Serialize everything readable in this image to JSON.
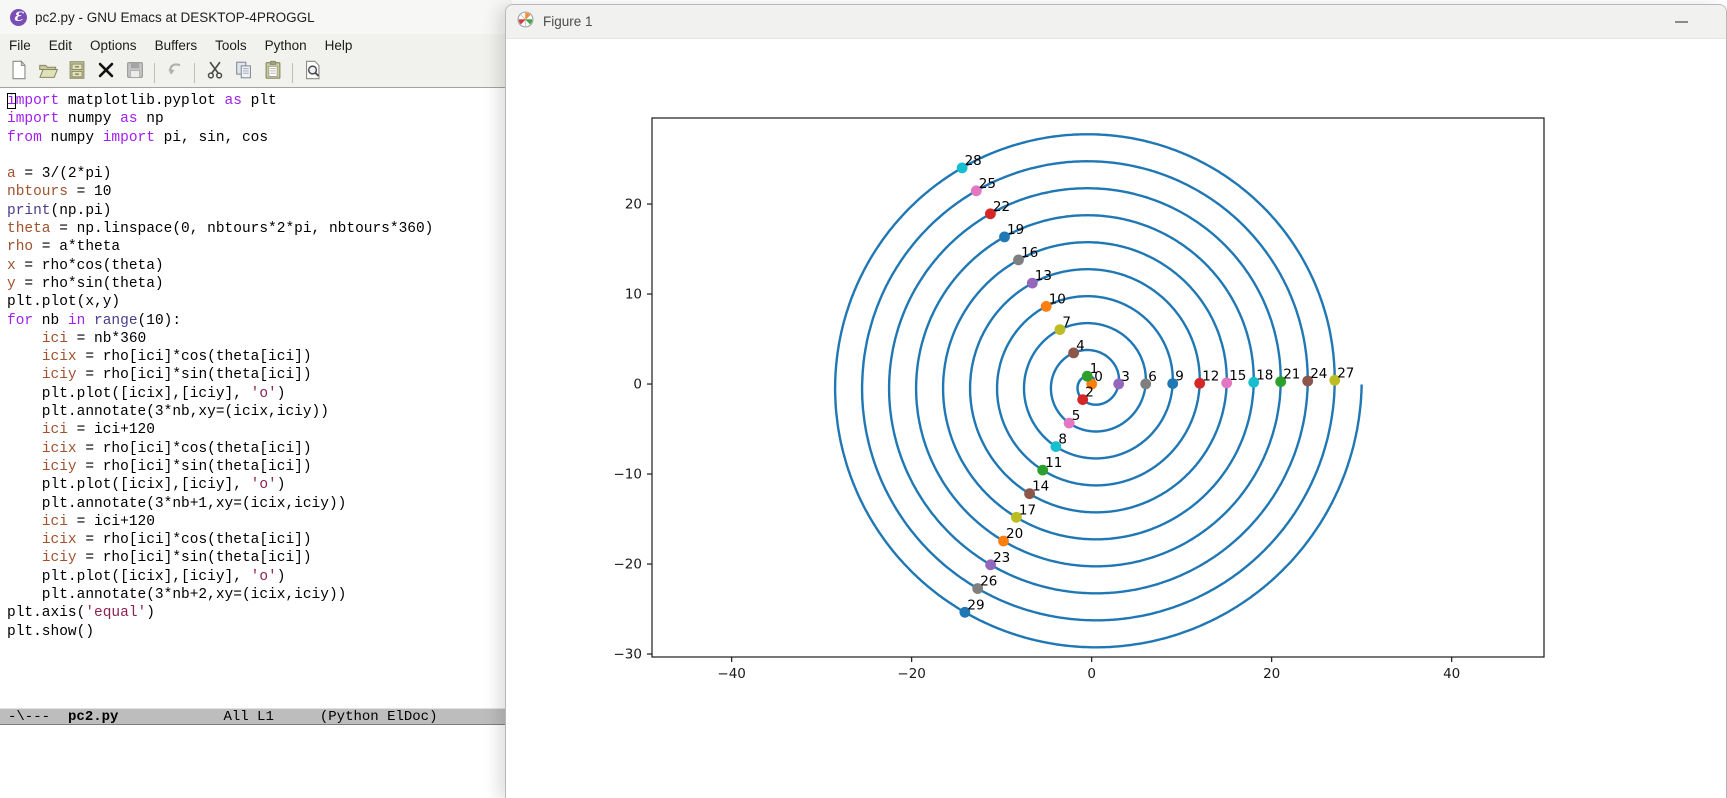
{
  "emacs": {
    "title": "pc2.py - GNU Emacs at DESKTOP-4PROGGL",
    "app_icon_glyph": "Ɛ",
    "menu": [
      "File",
      "Edit",
      "Options",
      "Buffers",
      "Tools",
      "Python",
      "Help"
    ],
    "toolbar": [
      {
        "name": "new-file"
      },
      {
        "name": "open-file"
      },
      {
        "name": "directory"
      },
      {
        "name": "kill-buffer"
      },
      {
        "name": "save",
        "disabled": true
      },
      "|",
      {
        "name": "undo",
        "disabled": true
      },
      "|",
      {
        "name": "cut"
      },
      {
        "name": "copy"
      },
      {
        "name": "paste"
      },
      "|",
      {
        "name": "search"
      }
    ],
    "code_lines": [
      [
        [
          "import",
          "k"
        ],
        [
          " matplotlib.pyplot ",
          ""
        ],
        [
          "as",
          "k"
        ],
        [
          " plt",
          ""
        ]
      ],
      [
        [
          "import",
          "k"
        ],
        [
          " numpy ",
          ""
        ],
        [
          "as",
          "k"
        ],
        [
          " np",
          ""
        ]
      ],
      [
        [
          "from",
          "k"
        ],
        [
          " numpy ",
          ""
        ],
        [
          "import",
          "k"
        ],
        [
          " pi, sin, cos",
          ""
        ]
      ],
      [],
      [
        [
          "a",
          "v"
        ],
        [
          " = 3/(2*pi)",
          ""
        ]
      ],
      [
        [
          "nbtours",
          "v"
        ],
        [
          " = 10",
          ""
        ]
      ],
      [
        [
          "print",
          "b"
        ],
        [
          "(np.pi)",
          ""
        ]
      ],
      [
        [
          "theta",
          "v"
        ],
        [
          " = np.linspace(0, nbtours*2*pi, nbtours*360)",
          ""
        ]
      ],
      [
        [
          "rho",
          "v"
        ],
        [
          " = a*theta",
          ""
        ]
      ],
      [
        [
          "x",
          "v"
        ],
        [
          " = rho*cos(theta)",
          ""
        ]
      ],
      [
        [
          "y",
          "v"
        ],
        [
          " = rho*sin(theta)",
          ""
        ]
      ],
      [
        [
          "plt.plot(x,y)",
          ""
        ]
      ],
      [
        [
          "for",
          "k"
        ],
        [
          " nb ",
          ""
        ],
        [
          "in",
          "k"
        ],
        [
          " ",
          ""
        ],
        [
          "range",
          "b"
        ],
        [
          "(10):",
          ""
        ]
      ],
      [
        [
          "    ",
          ""
        ],
        [
          "ici",
          "v"
        ],
        [
          " = nb*360",
          ""
        ]
      ],
      [
        [
          "    ",
          ""
        ],
        [
          "icix",
          "v"
        ],
        [
          " = rho[ici]*cos(theta[ici])",
          ""
        ]
      ],
      [
        [
          "    ",
          ""
        ],
        [
          "iciy",
          "v"
        ],
        [
          " = rho[ici]*sin(theta[ici])",
          ""
        ]
      ],
      [
        [
          "    plt.plot([icix],[iciy], ",
          ""
        ],
        [
          "'o'",
          "s"
        ],
        [
          ")",
          ""
        ]
      ],
      [
        [
          "    plt.annotate(3*nb,xy=(icix,iciy))",
          ""
        ]
      ],
      [
        [
          "    ",
          ""
        ],
        [
          "ici",
          "v"
        ],
        [
          " = ici+120",
          ""
        ]
      ],
      [
        [
          "    ",
          ""
        ],
        [
          "icix",
          "v"
        ],
        [
          " = rho[ici]*cos(theta[ici])",
          ""
        ]
      ],
      [
        [
          "    ",
          ""
        ],
        [
          "iciy",
          "v"
        ],
        [
          " = rho[ici]*sin(theta[ici])",
          ""
        ]
      ],
      [
        [
          "    plt.plot([icix],[iciy], ",
          ""
        ],
        [
          "'o'",
          "s"
        ],
        [
          ")",
          ""
        ]
      ],
      [
        [
          "    plt.annotate(3*nb+1,xy=(icix,iciy))",
          ""
        ]
      ],
      [
        [
          "    ",
          ""
        ],
        [
          "ici",
          "v"
        ],
        [
          " = ici+120",
          ""
        ]
      ],
      [
        [
          "    ",
          ""
        ],
        [
          "icix",
          "v"
        ],
        [
          " = rho[ici]*cos(theta[ici])",
          ""
        ]
      ],
      [
        [
          "    ",
          ""
        ],
        [
          "iciy",
          "v"
        ],
        [
          " = rho[ici]*sin(theta[ici])",
          ""
        ]
      ],
      [
        [
          "    plt.plot([icix],[iciy], ",
          ""
        ],
        [
          "'o'",
          "s"
        ],
        [
          ")",
          ""
        ]
      ],
      [
        [
          "    plt.annotate(3*nb+2,xy=(icix,iciy))",
          ""
        ]
      ],
      [
        [
          "plt.axis(",
          ""
        ],
        [
          "'equal'",
          "s"
        ],
        [
          ")",
          ""
        ]
      ],
      [
        [
          "plt.show()",
          ""
        ]
      ]
    ],
    "modeline": {
      "prefix": "-\\---",
      "buffer": "pc2.py",
      "position": "All L1",
      "modes": "(Python ElDoc)"
    }
  },
  "figure": {
    "title": "Figure 1",
    "minimize_icon": "minimize-icon"
  },
  "chart_data": {
    "type": "line+scatter",
    "title": "",
    "xlabel": "",
    "ylabel": "",
    "xlim": [
      -48.85,
      50.26
    ],
    "ylim": [
      -30.33,
      29.56
    ],
    "xticks": [
      -40,
      -20,
      0,
      20,
      40
    ],
    "yticks": [
      -30,
      -20,
      -10,
      0,
      10,
      20
    ],
    "grid": false,
    "legend": false,
    "spiral": {
      "equation": "rho = 3*theta/(2*pi)",
      "a": 0.4774648,
      "turns": 10,
      "r_max": 30,
      "color": "#1f77b4"
    },
    "points": [
      {
        "label": "0",
        "x": 0.0,
        "y": 0.0,
        "color": "#ff7f0e"
      },
      {
        "label": "1",
        "x": -0.5,
        "y": 0.87,
        "color": "#2ca02c"
      },
      {
        "label": "2",
        "x": -1.0,
        "y": -1.73,
        "color": "#d62728"
      },
      {
        "label": "3",
        "x": 3.0,
        "y": 0.01,
        "color": "#9467bd"
      },
      {
        "label": "4",
        "x": -2.01,
        "y": 3.46,
        "color": "#8c564b"
      },
      {
        "label": "5",
        "x": -2.49,
        "y": -4.34,
        "color": "#e377c2"
      },
      {
        "label": "6",
        "x": 6.0,
        "y": 0.02,
        "color": "#7f7f7f"
      },
      {
        "label": "7",
        "x": -3.53,
        "y": 6.05,
        "color": "#bcbd22"
      },
      {
        "label": "8",
        "x": -3.97,
        "y": -6.95,
        "color": "#17becf"
      },
      {
        "label": "9",
        "x": 9.0,
        "y": 0.05,
        "color": "#1f77b4"
      },
      {
        "label": "10",
        "x": -5.05,
        "y": 8.63,
        "color": "#ff7f0e"
      },
      {
        "label": "11",
        "x": -5.44,
        "y": -9.56,
        "color": "#2ca02c"
      },
      {
        "label": "12",
        "x": 12.0,
        "y": 0.08,
        "color": "#d62728"
      },
      {
        "label": "13",
        "x": -6.59,
        "y": 11.21,
        "color": "#9467bd"
      },
      {
        "label": "14",
        "x": -6.9,
        "y": -12.18,
        "color": "#8c564b"
      },
      {
        "label": "15",
        "x": 15.0,
        "y": 0.13,
        "color": "#e377c2"
      },
      {
        "label": "16",
        "x": -8.13,
        "y": 13.79,
        "color": "#7f7f7f"
      },
      {
        "label": "17",
        "x": -8.36,
        "y": -14.81,
        "color": "#bcbd22"
      },
      {
        "label": "18",
        "x": 18.0,
        "y": 0.19,
        "color": "#17becf"
      },
      {
        "label": "19",
        "x": -9.68,
        "y": 16.35,
        "color": "#1f77b4"
      },
      {
        "label": "20",
        "x": -9.8,
        "y": -17.44,
        "color": "#ff7f0e"
      },
      {
        "label": "21",
        "x": 21.0,
        "y": 0.26,
        "color": "#2ca02c"
      },
      {
        "label": "22",
        "x": -11.25,
        "y": 18.92,
        "color": "#d62728"
      },
      {
        "label": "23",
        "x": -11.23,
        "y": -20.08,
        "color": "#9467bd"
      },
      {
        "label": "24",
        "x": 24.0,
        "y": 0.34,
        "color": "#8c564b"
      },
      {
        "label": "25",
        "x": -12.82,
        "y": 21.47,
        "color": "#e377c2"
      },
      {
        "label": "26",
        "x": -12.66,
        "y": -22.72,
        "color": "#7f7f7f"
      },
      {
        "label": "27",
        "x": 27.0,
        "y": 0.42,
        "color": "#bcbd22"
      },
      {
        "label": "28",
        "x": -14.4,
        "y": 24.02,
        "color": "#17becf"
      },
      {
        "label": "29",
        "x": -14.08,
        "y": -25.36,
        "color": "#1f77b4"
      }
    ]
  }
}
